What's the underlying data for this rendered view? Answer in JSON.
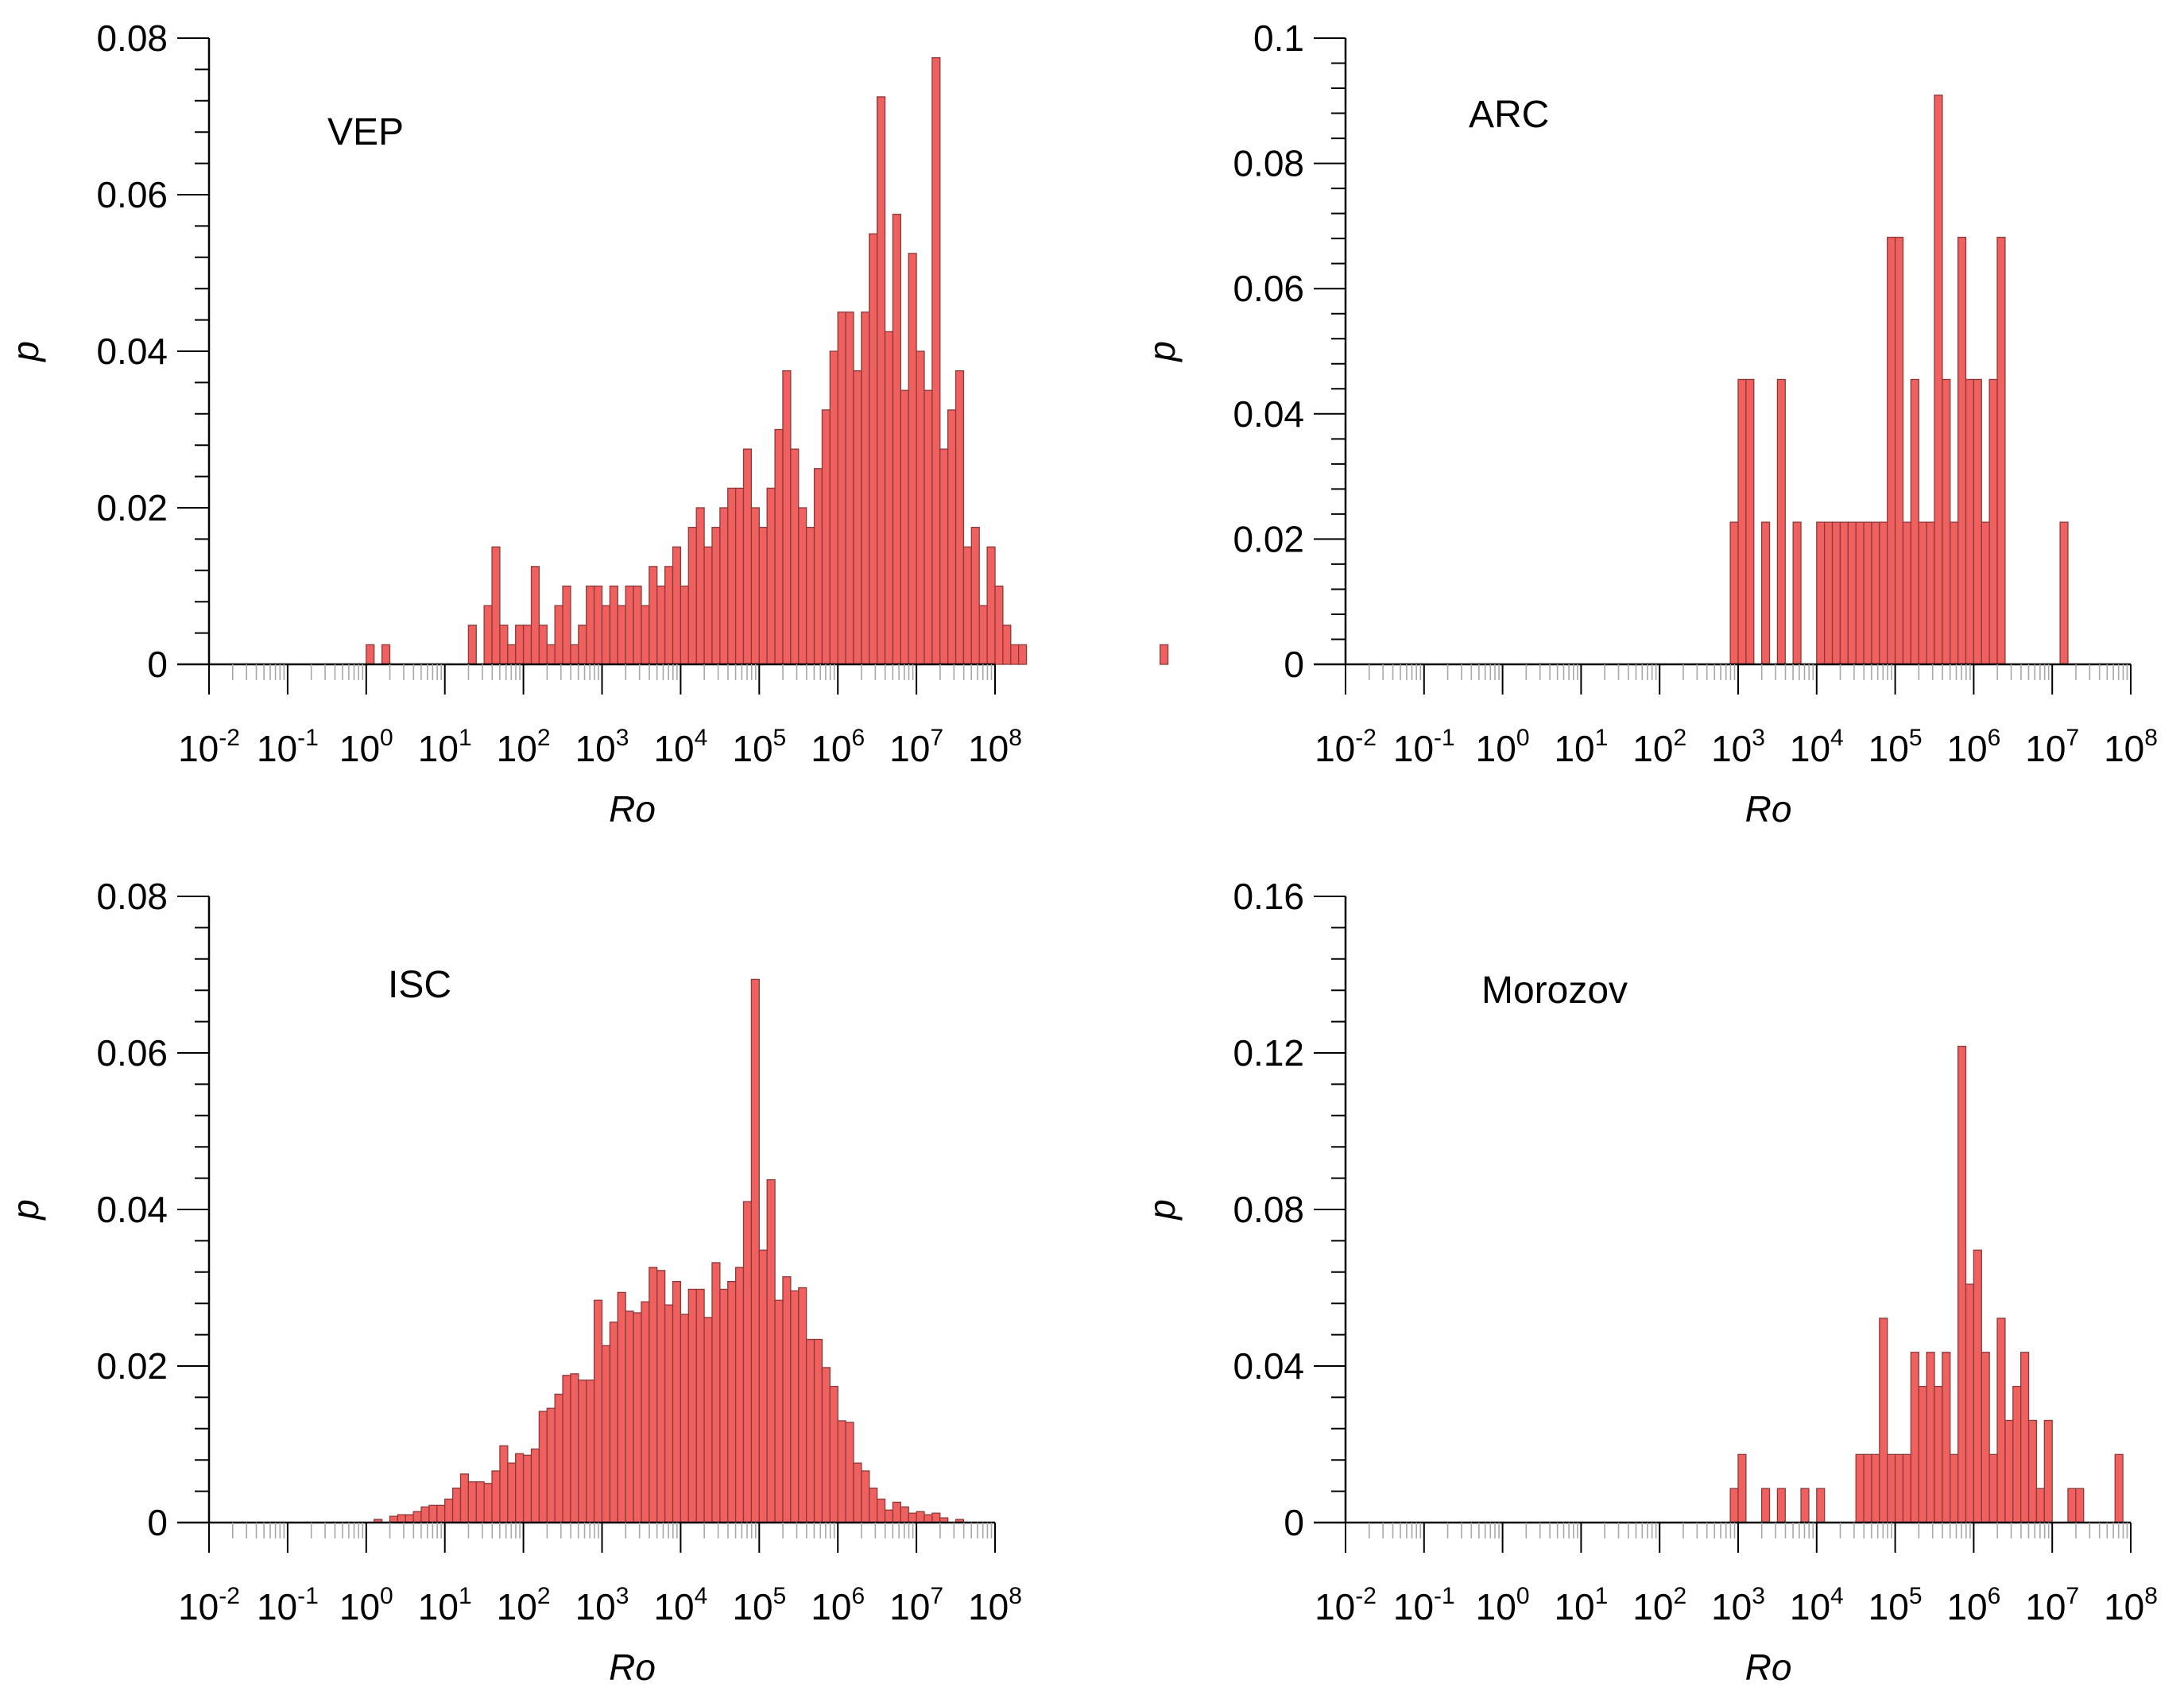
{
  "chart_data": [
    {
      "type": "bar",
      "label": "VEP",
      "xlabel": "Ro",
      "ylabel": "p",
      "xscale": "log",
      "xlim_exponent": [
        -2,
        8
      ],
      "x_tick_base": "10",
      "x_tick_exponents": [
        "-2",
        "-1",
        "0",
        "1",
        "2",
        "3",
        "4",
        "5",
        "6",
        "7",
        "8"
      ],
      "ylim": [
        0,
        0.08
      ],
      "y_ticks": [
        "0",
        "0.02",
        "0.04",
        "0.06",
        "0.08"
      ],
      "bin_start_exponent": 0.0,
      "bin_width_exponent": 0.1,
      "values": [
        0.0025,
        0,
        0.0025,
        0,
        0,
        0,
        0,
        0,
        0,
        0,
        0,
        0,
        0,
        0.005,
        0,
        0.0075,
        0.015,
        0.005,
        0.0025,
        0.005,
        0.005,
        0.0125,
        0.005,
        0.0025,
        0.0075,
        0.01,
        0.0025,
        0.005,
        0.01,
        0.01,
        0.0075,
        0.01,
        0.0075,
        0.01,
        0.01,
        0.0075,
        0.0125,
        0.01,
        0.0125,
        0.015,
        0.01,
        0.0175,
        0.02,
        0.015,
        0.0175,
        0.02,
        0.0225,
        0.0225,
        0.0275,
        0.02,
        0.0175,
        0.0225,
        0.03,
        0.0375,
        0.0275,
        0.02,
        0.0175,
        0.025,
        0.0325,
        0.04,
        0.045,
        0.045,
        0.0375,
        0.045,
        0.055,
        0.0725,
        0.0425,
        0.0575,
        0.035,
        0.0525,
        0.04,
        0.035,
        0.0775,
        0.0275,
        0.0325,
        0.0375,
        0.015,
        0.0175,
        0.0075,
        0.015,
        0.01,
        0.005,
        0.0025,
        0.0025,
        0,
        0,
        0,
        0,
        0,
        0,
        0,
        0,
        0,
        0,
        0,
        0,
        0,
        0,
        0,
        0,
        0,
        0.0025
      ]
    },
    {
      "type": "bar",
      "label": "ARC",
      "xlabel": "Ro",
      "ylabel": "p",
      "xscale": "log",
      "xlim_exponent": [
        -2,
        8
      ],
      "x_tick_base": "10",
      "x_tick_exponents": [
        "-2",
        "-1",
        "0",
        "1",
        "2",
        "3",
        "4",
        "5",
        "6",
        "7",
        "8"
      ],
      "ylim": [
        0,
        0.1
      ],
      "y_ticks": [
        "0",
        "0.02",
        "0.04",
        "0.06",
        "0.08",
        "0.1"
      ],
      "bin_start_exponent": 2.9,
      "bin_width_exponent": 0.1,
      "values": [
        0.0227,
        0.0455,
        0.0455,
        0,
        0.0227,
        0,
        0.0455,
        0,
        0.0227,
        0,
        0,
        0.0227,
        0.0227,
        0.0227,
        0.0227,
        0.0227,
        0.0227,
        0.0227,
        0.0227,
        0.0227,
        0.0682,
        0.0682,
        0.0227,
        0.0455,
        0.0227,
        0.0227,
        0.0909,
        0.0455,
        0.0227,
        0.0682,
        0.0455,
        0.0455,
        0.0227,
        0.0455,
        0.0682,
        0,
        0,
        0,
        0,
        0,
        0,
        0,
        0.0227
      ]
    },
    {
      "type": "bar",
      "label": "ISC",
      "xlabel": "Ro",
      "ylabel": "p",
      "xscale": "log",
      "xlim_exponent": [
        -2,
        8
      ],
      "x_tick_base": "10",
      "x_tick_exponents": [
        "-2",
        "-1",
        "0",
        "1",
        "2",
        "3",
        "4",
        "5",
        "6",
        "7",
        "8"
      ],
      "ylim": [
        0,
        0.08
      ],
      "y_ticks": [
        "0",
        "0.02",
        "0.04",
        "0.06",
        "0.08"
      ],
      "bin_start_exponent": 0.1,
      "bin_width_exponent": 0.1,
      "values": [
        0.0004,
        0,
        0.0008,
        0.001,
        0.001,
        0.0014,
        0.002,
        0.0022,
        0.0022,
        0.003,
        0.0044,
        0.0062,
        0.0052,
        0.0052,
        0.005,
        0.0066,
        0.0098,
        0.0076,
        0.0088,
        0.0086,
        0.0094,
        0.0142,
        0.0146,
        0.0164,
        0.0188,
        0.019,
        0.0182,
        0.0182,
        0.0284,
        0.0226,
        0.0256,
        0.0294,
        0.027,
        0.0268,
        0.0282,
        0.0326,
        0.0322,
        0.0278,
        0.0308,
        0.0266,
        0.0298,
        0.0298,
        0.0262,
        0.0332,
        0.0298,
        0.0308,
        0.0326,
        0.041,
        0.0694,
        0.0348,
        0.0438,
        0.0284,
        0.0314,
        0.0296,
        0.03,
        0.0234,
        0.0234,
        0.0198,
        0.0174,
        0.013,
        0.0128,
        0.0076,
        0.0066,
        0.0044,
        0.003,
        0.0016,
        0.0026,
        0.002,
        0.0012,
        0.0014,
        0.001,
        0.0012,
        0.0006,
        0,
        0.0004
      ]
    },
    {
      "type": "bar",
      "label": "Morozov",
      "xlabel": "Ro",
      "ylabel": "p",
      "xscale": "log",
      "xlim_exponent": [
        -2,
        8
      ],
      "x_tick_base": "10",
      "x_tick_exponents": [
        "-2",
        "-1",
        "0",
        "1",
        "2",
        "3",
        "4",
        "5",
        "6",
        "7",
        "8"
      ],
      "ylim": [
        0,
        0.16
      ],
      "y_ticks": [
        "0",
        "0.04",
        "0.08",
        "0.12",
        "0.16"
      ],
      "bin_start_exponent": 2.9,
      "bin_width_exponent": 0.1,
      "values": [
        0.0087,
        0.0174,
        0,
        0,
        0.0087,
        0,
        0.0087,
        0,
        0,
        0.0087,
        0,
        0.0087,
        0,
        0,
        0,
        0,
        0.0174,
        0.0174,
        0.0174,
        0.0522,
        0.0174,
        0.0174,
        0.0174,
        0.0435,
        0.0348,
        0.0435,
        0.0348,
        0.0435,
        0.0174,
        0.1217,
        0.0609,
        0.0696,
        0.0435,
        0.0174,
        0.0522,
        0.0261,
        0.0348,
        0.0435,
        0.0261,
        0.0087,
        0.0261,
        0,
        0,
        0.0087,
        0.0087,
        0,
        0,
        0,
        0,
        0.0174
      ]
    }
  ]
}
